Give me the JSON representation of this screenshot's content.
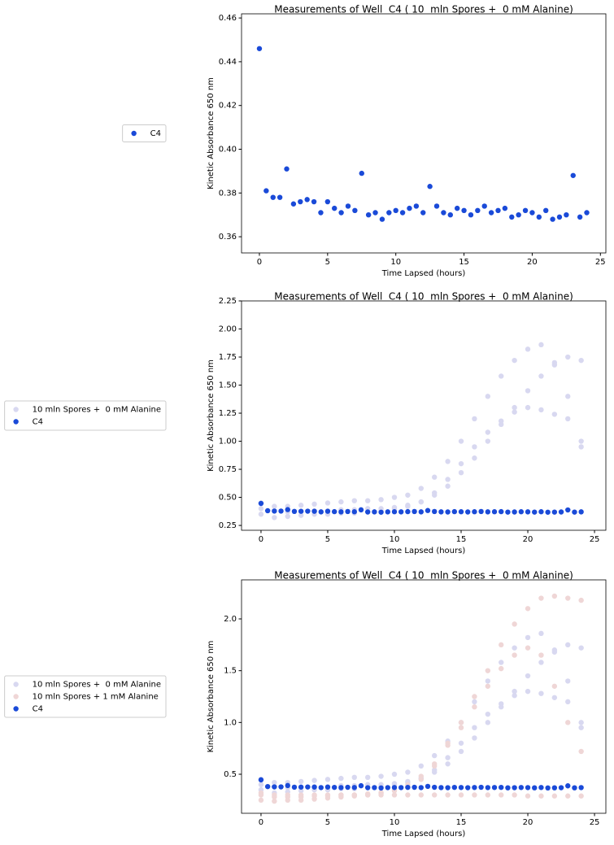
{
  "chart_data": [
    {
      "type": "scatter",
      "title": "Measurements of Well  C4 ( 10  mln Spores +  0 mM Alanine)",
      "x_label": "Time Lapsed (hours)",
      "y_label": "Kinetic Absorbance 650 nm",
      "xlim": [
        -1.31,
        25.4
      ],
      "ylim": [
        0.3526,
        0.4619
      ],
      "xticks": [
        0,
        5,
        10,
        15,
        20,
        25
      ],
      "yticks": [
        0.36,
        0.38,
        {
          "value": 0.4,
          "label": "0.40"
        },
        0.42,
        0.44,
        0.46
      ],
      "legend": "left",
      "series": [
        {
          "name": "C4",
          "color": "#1a4ad8",
          "x": [
            0,
            0.5,
            1,
            1.5,
            2,
            2.5,
            3,
            3.5,
            4,
            4.5,
            5,
            5.5,
            6,
            6.5,
            7,
            7.5,
            8,
            8.5,
            9,
            9.5,
            10,
            10.5,
            11,
            11.5,
            12,
            12.5,
            13,
            13.5,
            14,
            14.5,
            15,
            15.5,
            16,
            16.5,
            17,
            17.5,
            18,
            18.5,
            19,
            19.5,
            20,
            20.5,
            21,
            21.5,
            22,
            22.5,
            23,
            23.5,
            24
          ],
          "values": [
            0.446,
            0.381,
            0.378,
            0.378,
            0.391,
            0.375,
            0.376,
            0.377,
            0.376,
            0.371,
            0.376,
            0.373,
            0.371,
            0.374,
            0.372,
            0.389,
            0.37,
            0.371,
            0.368,
            0.371,
            0.372,
            0.371,
            0.373,
            0.374,
            0.371,
            0.383,
            0.374,
            0.371,
            0.37,
            0.373,
            0.372,
            0.37,
            0.372,
            0.374,
            0.371,
            0.372,
            0.373,
            0.369,
            0.37,
            0.372,
            0.371,
            0.369,
            0.372,
            0.368,
            0.369,
            0.37,
            0.388,
            0.369,
            0.371
          ]
        }
      ]
    },
    {
      "type": "scatter",
      "title": "Measurements of Well  C4 ( 10  mln Spores +  0 mM Alanine)",
      "x_label": "Time Lapsed (hours)",
      "y_label": "Kinetic Absorbance 650 nm",
      "xlim": [
        -1.46,
        25.85
      ],
      "ylim": [
        0.207,
        2.25
      ],
      "xticks": [
        0,
        5,
        10,
        15,
        20,
        25
      ],
      "yticks": [
        0.25,
        {
          "value": 0.5,
          "label": "0.50"
        },
        0.75,
        {
          "value": 1,
          "label": "1.00"
        },
        1.25,
        {
          "value": 1.5,
          "label": "1.50"
        },
        1.75,
        {
          "value": 2,
          "label": "2.00"
        },
        2.25
      ],
      "legend": "left",
      "series": [
        {
          "name": "10 mln Spores +  0 mM Alanine",
          "color": "#d8d8f0",
          "x": [
            0,
            1,
            2,
            3,
            4,
            5,
            6,
            7,
            8,
            9,
            10,
            11,
            12,
            13,
            14,
            15,
            16,
            17,
            18,
            19,
            20,
            21,
            22,
            23,
            24,
            0,
            1,
            2,
            3,
            4,
            5,
            6,
            7,
            8,
            9,
            10,
            11,
            12,
            13,
            14,
            15,
            16,
            17,
            18,
            19,
            20,
            21,
            22,
            23,
            24,
            0,
            1,
            2,
            3,
            4,
            5,
            6,
            7,
            8,
            9,
            10,
            11,
            12,
            13,
            14,
            15,
            16,
            17,
            18,
            19,
            20,
            21,
            22,
            23,
            24
          ],
          "values": [
            0.4,
            0.38,
            0.37,
            0.37,
            0.38,
            0.38,
            0.39,
            0.39,
            0.4,
            0.4,
            0.41,
            0.43,
            0.46,
            0.52,
            0.6,
            0.72,
            0.85,
            1.0,
            1.15,
            1.3,
            1.45,
            1.58,
            1.68,
            1.75,
            1.72,
            0.45,
            0.42,
            0.42,
            0.43,
            0.44,
            0.45,
            0.46,
            0.47,
            0.47,
            0.48,
            0.5,
            0.52,
            0.58,
            0.68,
            0.82,
            1.0,
            1.2,
            1.4,
            1.58,
            1.72,
            1.82,
            1.86,
            1.7,
            1.4,
            1.0,
            0.35,
            0.32,
            0.33,
            0.34,
            0.35,
            0.35,
            0.36,
            0.36,
            0.37,
            0.38,
            0.4,
            0.42,
            0.46,
            0.54,
            0.66,
            0.8,
            0.95,
            1.08,
            1.18,
            1.26,
            1.3,
            1.28,
            1.24,
            1.2,
            0.95
          ]
        },
        {
          "name": "C4",
          "color": "#1a4ad8",
          "x": [
            0,
            0.5,
            1,
            1.5,
            2,
            2.5,
            3,
            3.5,
            4,
            4.5,
            5,
            5.5,
            6,
            6.5,
            7,
            7.5,
            8,
            8.5,
            9,
            9.5,
            10,
            10.5,
            11,
            11.5,
            12,
            12.5,
            13,
            13.5,
            14,
            14.5,
            15,
            15.5,
            16,
            16.5,
            17,
            17.5,
            18,
            18.5,
            19,
            19.5,
            20,
            20.5,
            21,
            21.5,
            22,
            22.5,
            23,
            23.5,
            24
          ],
          "values": [
            0.446,
            0.381,
            0.378,
            0.378,
            0.391,
            0.375,
            0.376,
            0.377,
            0.376,
            0.371,
            0.376,
            0.373,
            0.371,
            0.374,
            0.372,
            0.389,
            0.37,
            0.371,
            0.368,
            0.371,
            0.372,
            0.371,
            0.373,
            0.374,
            0.371,
            0.383,
            0.374,
            0.371,
            0.37,
            0.373,
            0.372,
            0.37,
            0.372,
            0.374,
            0.371,
            0.372,
            0.373,
            0.369,
            0.37,
            0.372,
            0.371,
            0.369,
            0.372,
            0.368,
            0.369,
            0.37,
            0.388,
            0.369,
            0.371
          ]
        }
      ]
    },
    {
      "type": "scatter",
      "title": "Measurements of Well  C4 ( 10  mln Spores +  0 mM Alanine)",
      "x_label": "Time Lapsed (hours)",
      "y_label": "Kinetic Absorbance 650 nm",
      "xlim": [
        -1.46,
        25.85
      ],
      "ylim": [
        0.123,
        2.377
      ],
      "xticks": [
        0,
        5,
        10,
        15,
        20,
        25
      ],
      "yticks": [
        0.5,
        {
          "value": 1,
          "label": "1.0"
        },
        1.5,
        {
          "value": 2,
          "label": "2.0"
        }
      ],
      "legend": "left",
      "series": [
        {
          "name": "10 mln Spores +  0 mM Alanine",
          "color": "#d8d8f0",
          "x": [
            0,
            1,
            2,
            3,
            4,
            5,
            6,
            7,
            8,
            9,
            10,
            11,
            12,
            13,
            14,
            15,
            16,
            17,
            18,
            19,
            20,
            21,
            22,
            23,
            24,
            0,
            1,
            2,
            3,
            4,
            5,
            6,
            7,
            8,
            9,
            10,
            11,
            12,
            13,
            14,
            15,
            16,
            17,
            18,
            19,
            20,
            21,
            22,
            23,
            24,
            0,
            1,
            2,
            3,
            4,
            5,
            6,
            7,
            8,
            9,
            10,
            11,
            12,
            13,
            14,
            15,
            16,
            17,
            18,
            19,
            20,
            21,
            22,
            23,
            24
          ],
          "values": [
            0.4,
            0.38,
            0.37,
            0.37,
            0.38,
            0.38,
            0.39,
            0.39,
            0.4,
            0.4,
            0.41,
            0.43,
            0.46,
            0.52,
            0.6,
            0.72,
            0.85,
            1.0,
            1.15,
            1.3,
            1.45,
            1.58,
            1.68,
            1.75,
            1.72,
            0.45,
            0.42,
            0.42,
            0.43,
            0.44,
            0.45,
            0.46,
            0.47,
            0.47,
            0.48,
            0.5,
            0.52,
            0.58,
            0.68,
            0.82,
            1.0,
            1.2,
            1.4,
            1.58,
            1.72,
            1.82,
            1.86,
            1.7,
            1.4,
            1.0,
            0.35,
            0.32,
            0.33,
            0.34,
            0.35,
            0.35,
            0.36,
            0.36,
            0.37,
            0.38,
            0.4,
            0.42,
            0.46,
            0.54,
            0.66,
            0.8,
            0.95,
            1.08,
            1.18,
            1.26,
            1.3,
            1.28,
            1.24,
            1.2,
            0.95
          ]
        },
        {
          "name": "10 mln Spores + 1 mM Alanine",
          "color": "#efd6d6",
          "x": [
            0,
            1,
            2,
            3,
            4,
            5,
            6,
            7,
            8,
            9,
            10,
            11,
            12,
            13,
            14,
            15,
            16,
            17,
            18,
            19,
            20,
            21,
            22,
            23,
            24,
            0,
            1,
            2,
            3,
            4,
            5,
            6,
            7,
            8,
            9,
            10,
            11,
            12,
            13,
            14,
            15,
            16,
            17,
            18,
            19,
            20,
            21,
            22,
            23,
            24,
            0,
            1,
            2,
            3,
            4,
            5,
            6,
            7,
            8,
            9,
            10,
            11,
            12,
            13,
            14,
            15,
            16,
            17,
            18,
            19,
            20,
            21,
            22,
            23,
            24
          ],
          "values": [
            0.3,
            0.28,
            0.28,
            0.28,
            0.29,
            0.29,
            0.3,
            0.3,
            0.31,
            0.32,
            0.34,
            0.38,
            0.45,
            0.58,
            0.8,
            1.0,
            1.25,
            1.5,
            1.75,
            1.95,
            2.1,
            2.2,
            2.22,
            2.2,
            2.18,
            0.25,
            0.24,
            0.25,
            0.25,
            0.26,
            0.27,
            0.28,
            0.29,
            0.3,
            0.32,
            0.35,
            0.4,
            0.48,
            0.6,
            0.78,
            0.95,
            1.15,
            1.35,
            1.52,
            1.65,
            1.72,
            1.65,
            1.35,
            1.0,
            0.72,
            0.32,
            0.3,
            0.3,
            0.3,
            0.3,
            0.3,
            0.3,
            0.3,
            0.3,
            0.3,
            0.3,
            0.3,
            0.3,
            0.3,
            0.3,
            0.3,
            0.3,
            0.3,
            0.3,
            0.3,
            0.29,
            0.29,
            0.29,
            0.29,
            0.29
          ]
        },
        {
          "name": "C4",
          "color": "#1a4ad8",
          "x": [
            0,
            0.5,
            1,
            1.5,
            2,
            2.5,
            3,
            3.5,
            4,
            4.5,
            5,
            5.5,
            6,
            6.5,
            7,
            7.5,
            8,
            8.5,
            9,
            9.5,
            10,
            10.5,
            11,
            11.5,
            12,
            12.5,
            13,
            13.5,
            14,
            14.5,
            15,
            15.5,
            16,
            16.5,
            17,
            17.5,
            18,
            18.5,
            19,
            19.5,
            20,
            20.5,
            21,
            21.5,
            22,
            22.5,
            23,
            23.5,
            24
          ],
          "values": [
            0.446,
            0.381,
            0.378,
            0.378,
            0.391,
            0.375,
            0.376,
            0.377,
            0.376,
            0.371,
            0.376,
            0.373,
            0.371,
            0.374,
            0.372,
            0.389,
            0.37,
            0.371,
            0.368,
            0.371,
            0.372,
            0.371,
            0.373,
            0.374,
            0.371,
            0.383,
            0.374,
            0.371,
            0.37,
            0.373,
            0.372,
            0.37,
            0.372,
            0.374,
            0.371,
            0.372,
            0.373,
            0.369,
            0.37,
            0.372,
            0.371,
            0.369,
            0.372,
            0.368,
            0.369,
            0.37,
            0.388,
            0.369,
            0.371
          ]
        }
      ]
    }
  ]
}
